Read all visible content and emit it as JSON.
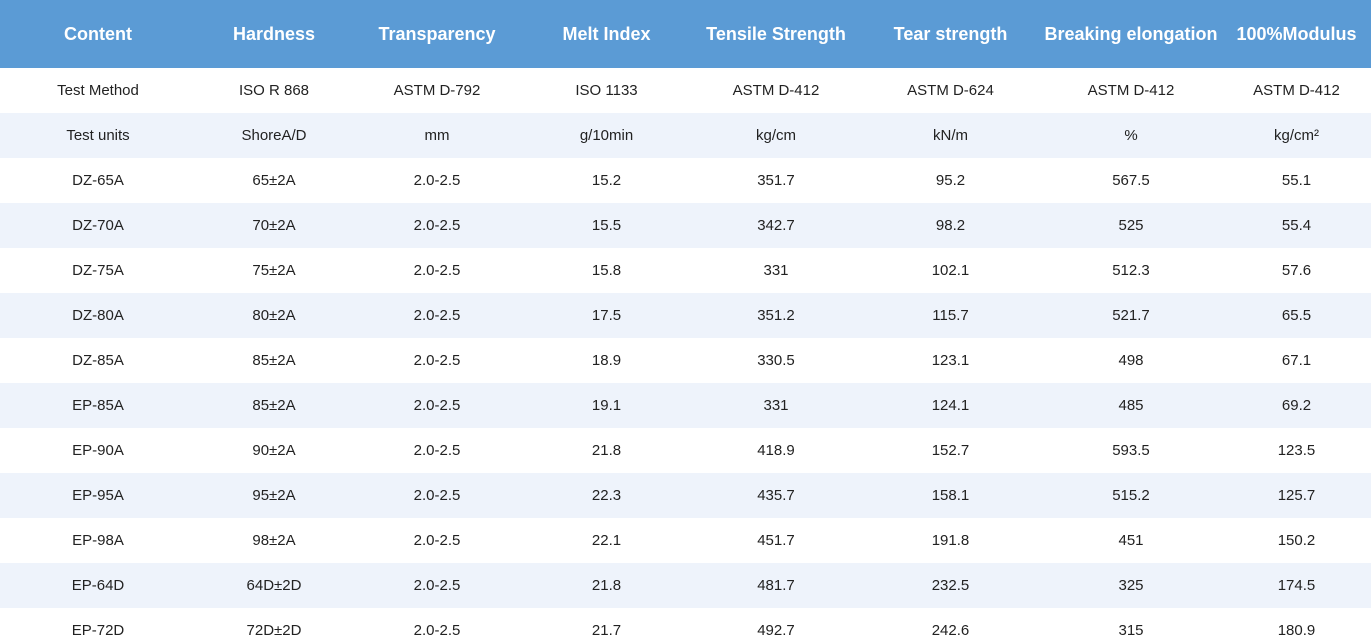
{
  "table": {
    "header": [
      "Content",
      "Hardness",
      "Transparency",
      "Melt Index",
      "Tensile Strength",
      "Tear strength",
      "Breaking elongation",
      "100%Modulus"
    ],
    "rows": [
      [
        "Test Method",
        "ISO R 868",
        "ASTM D-792",
        "ISO 1133",
        "ASTM D-412",
        "ASTM D-624",
        "ASTM D-412",
        "ASTM D-412"
      ],
      [
        "Test units",
        "ShoreA/D",
        "mm",
        "g/10min",
        "kg/cm",
        "kN/m",
        "%",
        "kg/cm²"
      ],
      [
        "DZ-65A",
        "65±2A",
        "2.0-2.5",
        "15.2",
        "351.7",
        "95.2",
        "567.5",
        "55.1"
      ],
      [
        "DZ-70A",
        "70±2A",
        "2.0-2.5",
        "15.5",
        "342.7",
        "98.2",
        "525",
        "55.4"
      ],
      [
        "DZ-75A",
        "75±2A",
        "2.0-2.5",
        "15.8",
        "331",
        "102.1",
        "512.3",
        "57.6"
      ],
      [
        "DZ-80A",
        "80±2A",
        "2.0-2.5",
        "17.5",
        "351.2",
        "115.7",
        "521.7",
        "65.5"
      ],
      [
        "DZ-85A",
        "85±2A",
        "2.0-2.5",
        "18.9",
        "330.5",
        "123.1",
        "498",
        "67.1"
      ],
      [
        "EP-85A",
        "85±2A",
        "2.0-2.5",
        "19.1",
        "331",
        "124.1",
        "485",
        "69.2"
      ],
      [
        "EP-90A",
        "90±2A",
        "2.0-2.5",
        "21.8",
        "418.9",
        "152.7",
        "593.5",
        "123.5"
      ],
      [
        "EP-95A",
        "95±2A",
        "2.0-2.5",
        "22.3",
        "435.7",
        "158.1",
        "515.2",
        "125.7"
      ],
      [
        "EP-98A",
        "98±2A",
        "2.0-2.5",
        "22.1",
        "451.7",
        "191.8",
        "451",
        "150.2"
      ],
      [
        "EP-64D",
        "64D±2D",
        "2.0-2.5",
        "21.8",
        "481.7",
        "232.5",
        "325",
        "174.5"
      ],
      [
        "EP-72D",
        "72D±2D",
        "2.0-2.5",
        "21.7",
        "492.7",
        "242.6",
        "315",
        "180.9"
      ]
    ]
  }
}
